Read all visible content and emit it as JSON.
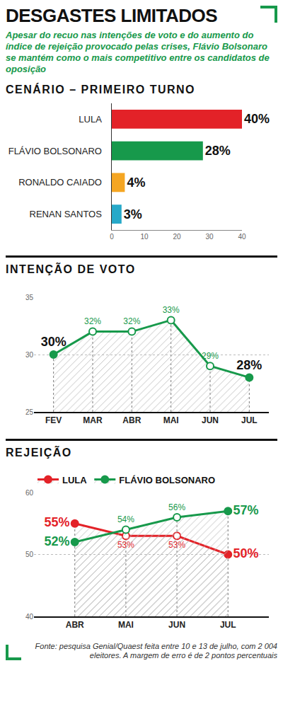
{
  "title": "DESGASTES LIMITADOS",
  "subtitle": "Apesar do recuo nas intenções de voto e do aumento do índice de rejeição provocado pelas crises, Flávio Bolsonaro se mantém como o mais competitivo entre os candidatos de oposição",
  "source": "Fonte: pesquisa Genial/Quaest feita entre 10 e 13 de julho, com 2 004 eleitores. A margem de erro é de 2 pontos percentuais",
  "chart_data": [
    {
      "type": "bar",
      "title": "CENÁRIO – PRIMEIRO TURNO",
      "orientation": "horizontal",
      "categories": [
        "LULA",
        "FLÁVIO BOLSONARO",
        "RONALDO CAIADO",
        "RENAN SANTOS"
      ],
      "values": [
        40,
        28,
        4,
        3
      ],
      "value_labels": [
        "40%",
        "28%",
        "4%",
        "3%"
      ],
      "colors": [
        "#e32228",
        "#17994b",
        "#f5a623",
        "#27a9c9"
      ],
      "xlim": [
        0,
        40
      ],
      "xticks": [
        0,
        10,
        20,
        30,
        40
      ],
      "data_labels": true,
      "grid": false
    },
    {
      "type": "line",
      "title": "INTENÇÃO DE VOTO",
      "categories": [
        "FEV",
        "MAR",
        "ABR",
        "MAI",
        "JUN",
        "JUL"
      ],
      "values": [
        30,
        32,
        32,
        33,
        29,
        28
      ],
      "value_labels": [
        "30%",
        "32%",
        "32%",
        "33%",
        "29%",
        "28%"
      ],
      "color": "#17994b",
      "marker": "circle",
      "ylim": [
        25,
        35
      ],
      "yticks": [
        25,
        30,
        35
      ],
      "data_labels": true,
      "grid": true
    },
    {
      "type": "line",
      "title": "REJEIÇÃO",
      "categories": [
        "ABR",
        "MAI",
        "JUN",
        "JUL"
      ],
      "series": [
        {
          "name": "LULA",
          "color": "#e32228",
          "values": [
            55,
            53,
            53,
            50
          ],
          "value_labels": [
            "55%",
            "53%",
            "53%",
            "50%"
          ]
        },
        {
          "name": "FLÁVIO BOLSONARO",
          "color": "#17994b",
          "values": [
            52,
            54,
            56,
            57
          ],
          "value_labels": [
            "52%",
            "54%",
            "56%",
            "57%"
          ]
        }
      ],
      "marker": "circle",
      "legend": "top left",
      "ylim": [
        40,
        60
      ],
      "yticks": [
        40,
        50,
        60
      ],
      "data_labels": true,
      "grid": true
    }
  ]
}
